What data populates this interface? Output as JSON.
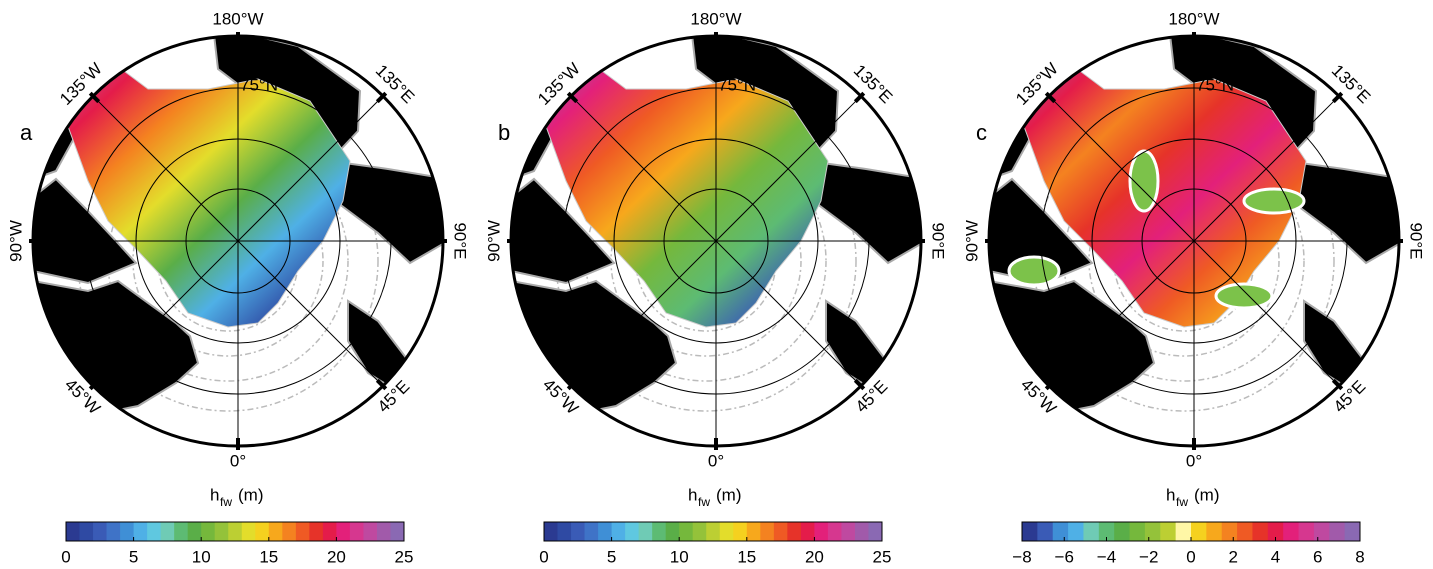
{
  "panels": [
    {
      "letter": "a",
      "lon_labels": [
        "180°W",
        "135°E",
        "90°E",
        "45°E",
        "0°",
        "45°W",
        "90°W",
        "135°W"
      ],
      "lat_label": "75°N",
      "colorbar": {
        "symbol": "h",
        "subscript": "fw",
        "unit": "(m)",
        "lim": [
          0,
          25
        ],
        "ticks": [
          0,
          5,
          10,
          15,
          20,
          25
        ],
        "colors": [
          "#2b3a91",
          "#2f4aa3",
          "#3a5bb6",
          "#3f73c7",
          "#3f8fd6",
          "#4fb0e6",
          "#5fc8e0",
          "#6fcbb5",
          "#5dbb73",
          "#5aae48",
          "#75b83c",
          "#94c23a",
          "#bccf33",
          "#e3dd2b",
          "#f5d11f",
          "#f7a81c",
          "#f48220",
          "#ef5a24",
          "#e63329",
          "#e41c4a",
          "#e3207a",
          "#d6378f",
          "#bf49a0",
          "#a15aaa",
          "#8a69b3"
        ]
      }
    },
    {
      "letter": "b",
      "lon_labels": [
        "180°W",
        "135°E",
        "90°E",
        "45°E",
        "0°",
        "45°W",
        "90°W",
        "135°W"
      ],
      "lat_label": "75°N",
      "colorbar": {
        "symbol": "h",
        "subscript": "fw",
        "unit": "(m)",
        "lim": [
          0,
          25
        ],
        "ticks": [
          0,
          5,
          10,
          15,
          20,
          25
        ],
        "colors": [
          "#2b3a91",
          "#2f4aa3",
          "#3a5bb6",
          "#3f73c7",
          "#3f8fd6",
          "#4fb0e6",
          "#5fc8e0",
          "#6fcbb5",
          "#5dbb73",
          "#5aae48",
          "#75b83c",
          "#94c23a",
          "#bccf33",
          "#e3dd2b",
          "#f5d11f",
          "#f7a81c",
          "#f48220",
          "#ef5a24",
          "#e63329",
          "#e41c4a",
          "#e3207a",
          "#d6378f",
          "#bf49a0",
          "#a15aaa",
          "#8a69b3"
        ]
      }
    },
    {
      "letter": "c",
      "lon_labels": [
        "180°W",
        "135°E",
        "90°E",
        "45°E",
        "0°",
        "45°W",
        "90°W",
        "135°W"
      ],
      "lat_label": "75°N",
      "colorbar": {
        "symbol": "h",
        "subscript": "fw",
        "unit": "(m)",
        "lim": [
          -8,
          8
        ],
        "ticks": [
          {
            "value": -8,
            "label": "−8"
          },
          {
            "value": -6,
            "label": "−6"
          },
          {
            "value": -4,
            "label": "−4"
          },
          {
            "value": -2,
            "label": "−2"
          },
          0,
          2,
          4,
          6,
          8
        ],
        "colors": [
          "#2b3a91",
          "#3a5bb6",
          "#3f8fd6",
          "#4fb0e6",
          "#6fcbb5",
          "#5dbb73",
          "#5aae48",
          "#75b83c",
          "#94c23a",
          "#bccf33",
          "#fff7a6",
          "#f5d11f",
          "#f7a81c",
          "#f48220",
          "#ef5a24",
          "#e63329",
          "#e41c4a",
          "#e3207a",
          "#d6378f",
          "#bf49a0",
          "#a15aaa",
          "#8a69b3"
        ]
      }
    }
  ]
}
